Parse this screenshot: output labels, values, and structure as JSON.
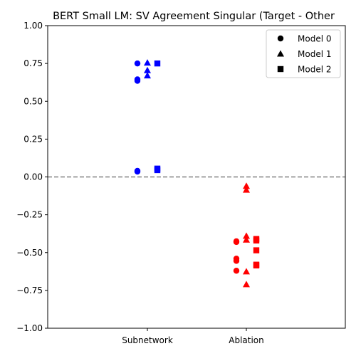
{
  "chart_data": {
    "type": "scatter",
    "title": "BERT Small LM: SV Agreement Singular (Target - Other",
    "xlabel": "",
    "ylabel": "",
    "categories": [
      "Subnetwork",
      "Ablation"
    ],
    "ylim": [
      -1.0,
      1.0
    ],
    "yticks": [
      "−1.00",
      "−0.75",
      "−0.50",
      "−0.25",
      "0.00",
      "0.25",
      "0.50",
      "0.75",
      "1.00"
    ],
    "reference_line": {
      "y": 0.0,
      "style": "dashed",
      "color": "#808080"
    },
    "category_colors": {
      "Subnetwork": "#0000ff",
      "Ablation": "#ff0000"
    },
    "legend_position": "top-right",
    "series": [
      {
        "name": "Model 0",
        "marker": "circle",
        "values": {
          "Subnetwork": [
            0.75,
            0.645,
            0.635,
            0.04,
            0.035
          ],
          "Ablation": [
            -0.425,
            -0.43,
            -0.54,
            -0.555,
            -0.62
          ]
        }
      },
      {
        "name": "Model 1",
        "marker": "triangle",
        "values": {
          "Subnetwork": [
            0.755,
            0.705,
            0.67
          ],
          "Ablation": [
            -0.06,
            -0.085,
            -0.39,
            -0.415,
            -0.625,
            -0.71
          ]
        }
      },
      {
        "name": "Model 2",
        "marker": "square",
        "values": {
          "Subnetwork": [
            0.75,
            0.055,
            0.045
          ],
          "Ablation": [
            -0.41,
            -0.42,
            -0.485,
            -0.58,
            -0.585
          ]
        }
      }
    ]
  }
}
